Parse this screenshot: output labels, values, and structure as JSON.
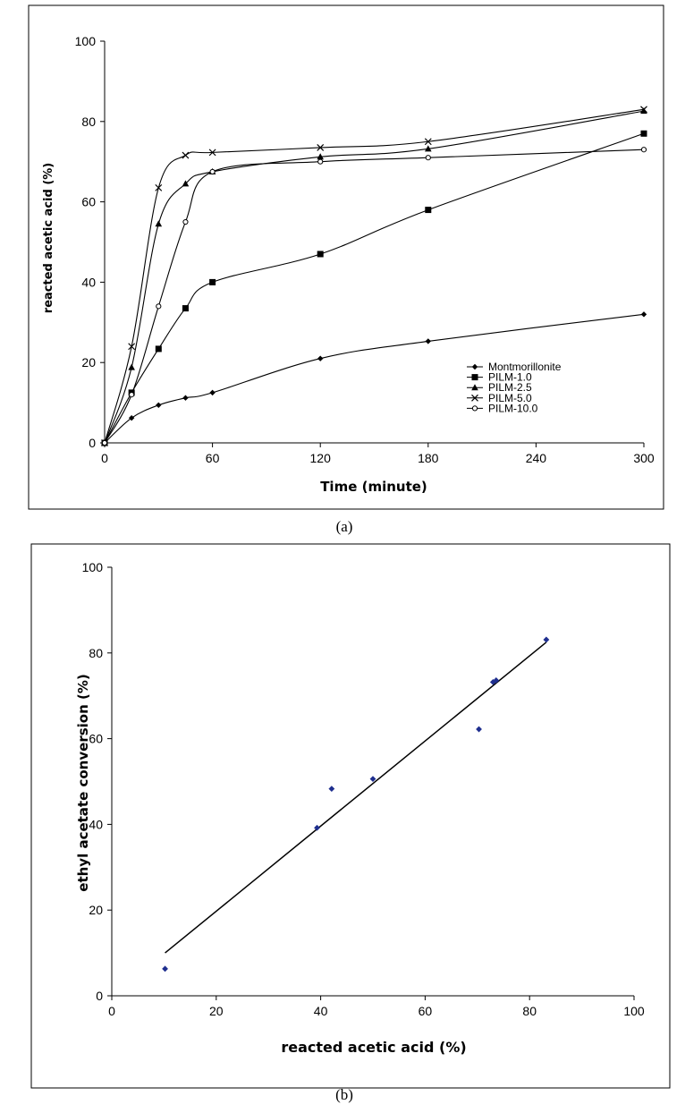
{
  "chart_data": [
    {
      "type": "line",
      "panel_caption": "(a)",
      "xlabel": "Time (minute)",
      "ylabel": "reacted acetic acid (%)",
      "xlim": [
        0,
        300
      ],
      "ylim": [
        0,
        100
      ],
      "xticks": [
        "0",
        "60",
        "120",
        "180",
        "240",
        "300"
      ],
      "yticks": [
        "0",
        "20",
        "40",
        "60",
        "80",
        "100"
      ],
      "legend_position": "bottom-right",
      "grid": false,
      "series": [
        {
          "name": "Montmorillonite",
          "marker": "diamond",
          "x": [
            0,
            15,
            30,
            45,
            60,
            120,
            180,
            300
          ],
          "y": [
            0,
            6.2,
            9.4,
            11.2,
            12.5,
            21,
            25.3,
            32
          ]
        },
        {
          "name": "PILM-1.0",
          "marker": "square",
          "x": [
            0,
            15,
            30,
            45,
            60,
            120,
            180,
            300
          ],
          "y": [
            0,
            12.5,
            23.4,
            33.5,
            40,
            47,
            58,
            77
          ]
        },
        {
          "name": "PILM-2.5",
          "marker": "triangle",
          "x": [
            0,
            15,
            30,
            45,
            60,
            120,
            180,
            300
          ],
          "y": [
            0,
            18.8,
            54.5,
            64.5,
            67.5,
            71.2,
            73.2,
            82.6
          ]
        },
        {
          "name": "PILM-5.0",
          "marker": "cross",
          "x": [
            0,
            15,
            30,
            45,
            60,
            120,
            180,
            300
          ],
          "y": [
            0,
            24,
            63.5,
            71.6,
            72.3,
            73.5,
            75,
            83
          ]
        },
        {
          "name": "PILM-10.0",
          "marker": "circle",
          "x": [
            0,
            15,
            30,
            45,
            60,
            120,
            180,
            300
          ],
          "y": [
            0,
            12,
            34,
            55,
            67.5,
            70,
            71,
            73
          ]
        }
      ]
    },
    {
      "type": "scatter",
      "panel_caption": "(b)",
      "xlabel": "reacted acetic acid (%)",
      "ylabel": "ethyl acetate conversion (%)",
      "xlim": [
        0,
        100
      ],
      "ylim": [
        0,
        100
      ],
      "xticks": [
        "0",
        "20",
        "40",
        "60",
        "80",
        "100"
      ],
      "yticks": [
        "0",
        "20",
        "40",
        "60",
        "80",
        "100"
      ],
      "grid": false,
      "marker_color": "#1f2f8f",
      "points": [
        {
          "x": 10.2,
          "y": 6.3
        },
        {
          "x": 39.3,
          "y": 39.2
        },
        {
          "x": 42.1,
          "y": 48.3
        },
        {
          "x": 50,
          "y": 50.6
        },
        {
          "x": 70.3,
          "y": 62.2
        },
        {
          "x": 73,
          "y": 73.2
        },
        {
          "x": 73.6,
          "y": 73.6
        },
        {
          "x": 83.2,
          "y": 83.1
        }
      ],
      "trend_line": {
        "x": [
          10.2,
          83.2
        ],
        "y": [
          10.0,
          82.5
        ]
      }
    }
  ]
}
